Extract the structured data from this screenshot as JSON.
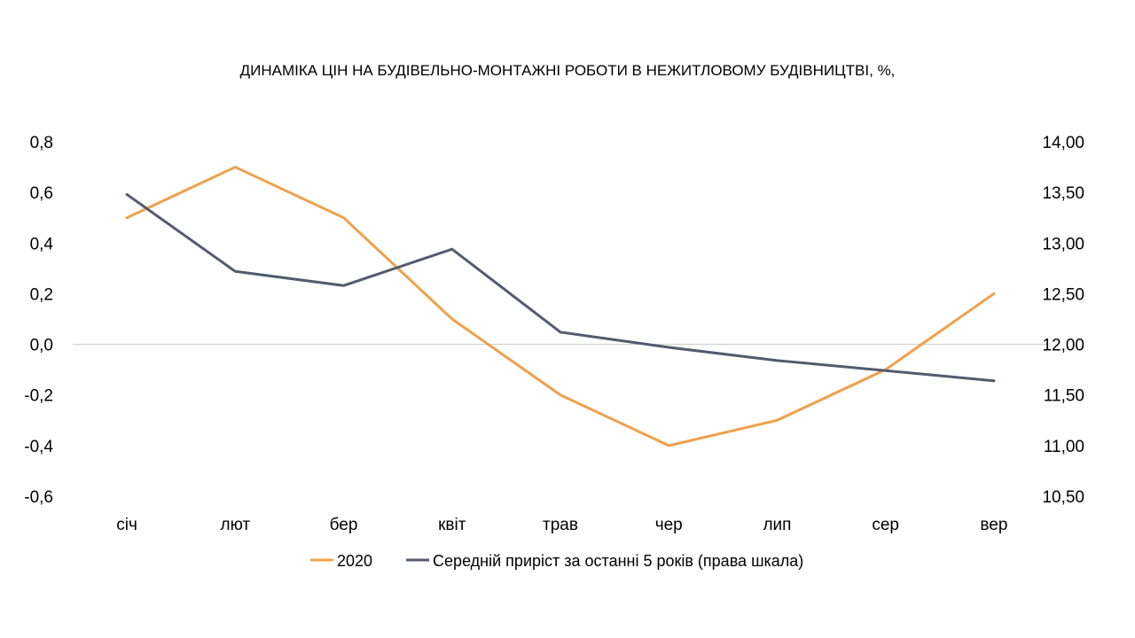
{
  "chart_data": {
    "type": "line",
    "title": "ДИНАМІКА ЦІН НА БУДІВЕЛЬНО-МОНТАЖНІ РОБОТИ В НЕЖИТЛОВОМУ БУДІВНИЦТВІ, %,",
    "categories": [
      "січ",
      "лют",
      "бер",
      "квіт",
      "трав",
      "чер",
      "лип",
      "сер",
      "вер"
    ],
    "y_left": {
      "min": -0.6,
      "max": 0.8,
      "ticks": [
        "0,8",
        "0,6",
        "0,4",
        "0,2",
        "0,0",
        "-0,2",
        "-0,4",
        "-0,6"
      ],
      "tick_values": [
        0.8,
        0.6,
        0.4,
        0.2,
        0.0,
        -0.2,
        -0.4,
        -0.6
      ]
    },
    "y_right": {
      "min": 10.5,
      "max": 14.0,
      "ticks": [
        "14,00",
        "13,50",
        "13,00",
        "12,50",
        "12,00",
        "11,50",
        "11,00",
        "10,50"
      ],
      "tick_values": [
        14.0,
        13.5,
        13.0,
        12.5,
        12.0,
        11.5,
        11.0,
        10.5
      ]
    },
    "zero_line": true,
    "legend_position": "bottom",
    "series": [
      {
        "name": "2020",
        "axis": "left",
        "color": "#F0A04B",
        "values": [
          0.5,
          0.7,
          0.5,
          0.1,
          -0.2,
          -0.4,
          -0.3,
          -0.1,
          0.2
        ]
      },
      {
        "name": "Середній приріст за останні 5 років (права шкала)",
        "axis": "right",
        "color": "#525B6E",
        "values": [
          13.48,
          12.72,
          12.58,
          12.94,
          12.12,
          11.97,
          11.84,
          11.74,
          11.64
        ]
      }
    ]
  }
}
